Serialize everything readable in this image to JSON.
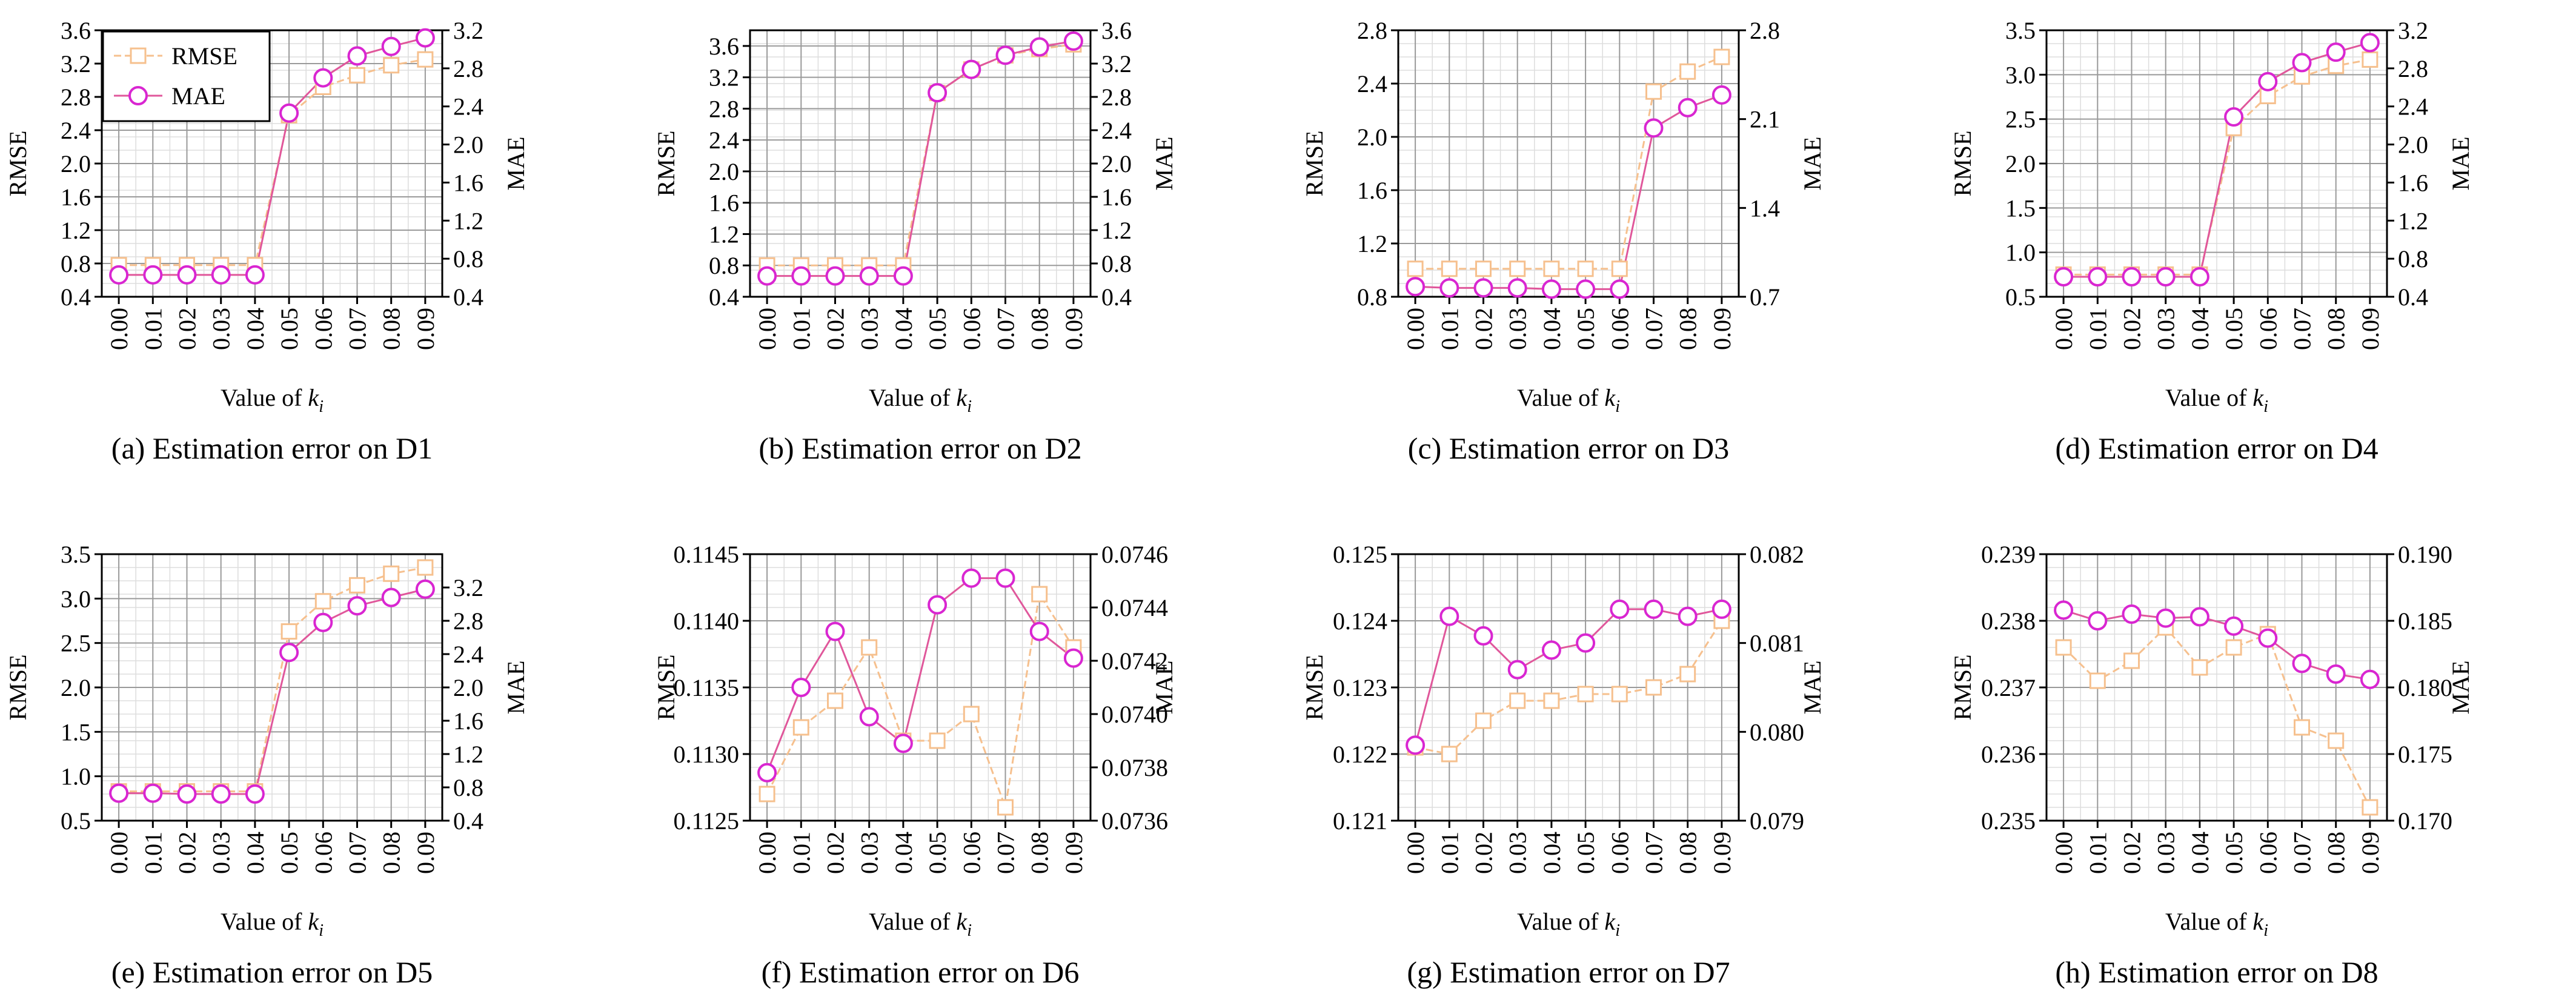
{
  "figure": {
    "x_ticks": [
      "0.00",
      "0.01",
      "0.02",
      "0.03",
      "0.04",
      "0.05",
      "0.06",
      "0.07",
      "0.08",
      "0.09"
    ],
    "xlabel_prefix": "Value of ",
    "xlabel_var": "k",
    "xlabel_sub": "i",
    "legend": {
      "rmse": "RMSE",
      "mae": "MAE"
    },
    "colors": {
      "rmse": "#f6c08e",
      "rmse_fill": "#ffffff",
      "mae_line": "#e0579b",
      "mae_marker": "#d926d1",
      "grid_major": "#9a9a9a",
      "grid_minor": "#dddddd"
    }
  },
  "chart_data": [
    {
      "type": "line",
      "caption": "(a) Estimation error on D1",
      "ylabel_left": "RMSE",
      "ylabel_right": "MAE",
      "ylim_left": [
        0.4,
        3.6
      ],
      "yticks_left": [
        "0.4",
        "0.8",
        "1.2",
        "1.6",
        "2.0",
        "2.4",
        "2.8",
        "3.2",
        "3.6"
      ],
      "ylim_right": [
        0.4,
        3.2
      ],
      "yticks_right": [
        "0.4",
        "0.8",
        "1.2",
        "1.6",
        "2.0",
        "2.4",
        "2.8",
        "3.2"
      ],
      "x": [
        0.0,
        0.01,
        0.02,
        0.03,
        0.04,
        0.05,
        0.06,
        0.07,
        0.08,
        0.09
      ],
      "series": [
        {
          "name": "RMSE",
          "axis": "left",
          "values": [
            0.78,
            0.78,
            0.78,
            0.78,
            0.78,
            2.58,
            2.92,
            3.06,
            3.18,
            3.25
          ]
        },
        {
          "name": "MAE",
          "axis": "right",
          "values": [
            0.63,
            0.63,
            0.63,
            0.63,
            0.63,
            2.33,
            2.7,
            2.93,
            3.03,
            3.12
          ]
        }
      ]
    },
    {
      "type": "line",
      "caption": "(b) Estimation error on D2",
      "ylabel_left": "RMSE",
      "ylabel_right": "MAE",
      "ylim_left": [
        0.4,
        3.8
      ],
      "yticks_left": [
        "0.4",
        "0.8",
        "1.2",
        "1.6",
        "2.0",
        "2.4",
        "2.8",
        "3.2",
        "3.6"
      ],
      "ylim_right": [
        0.4,
        3.6
      ],
      "yticks_right": [
        "0.4",
        "0.8",
        "1.2",
        "1.6",
        "2.0",
        "2.4",
        "2.8",
        "3.2",
        "3.6"
      ],
      "x": [
        0.0,
        0.01,
        0.02,
        0.03,
        0.04,
        0.05,
        0.06,
        0.07,
        0.08,
        0.09
      ],
      "series": [
        {
          "name": "RMSE",
          "axis": "left",
          "values": [
            0.8,
            0.8,
            0.8,
            0.8,
            0.8,
            3.0,
            3.3,
            3.48,
            3.56,
            3.62
          ]
        },
        {
          "name": "MAE",
          "axis": "right",
          "values": [
            0.65,
            0.65,
            0.65,
            0.65,
            0.65,
            2.85,
            3.13,
            3.3,
            3.4,
            3.47
          ]
        }
      ]
    },
    {
      "type": "line",
      "caption": "(c) Estimation error on D3",
      "ylabel_left": "RMSE",
      "ylabel_right": "MAE",
      "ylim_left": [
        0.8,
        2.8
      ],
      "yticks_left": [
        "0.8",
        "1.2",
        "1.6",
        "2.0",
        "2.4",
        "2.8"
      ],
      "ylim_right": [
        0.7,
        2.8
      ],
      "yticks_right": [
        "0.7",
        "1.4",
        "2.1",
        "2.8"
      ],
      "x": [
        0.0,
        0.01,
        0.02,
        0.03,
        0.04,
        0.05,
        0.06,
        0.07,
        0.08,
        0.09
      ],
      "series": [
        {
          "name": "RMSE",
          "axis": "left",
          "values": [
            1.01,
            1.01,
            1.01,
            1.01,
            1.01,
            1.01,
            1.01,
            2.34,
            2.49,
            2.6
          ]
        },
        {
          "name": "MAE",
          "axis": "right",
          "values": [
            0.78,
            0.77,
            0.77,
            0.77,
            0.76,
            0.76,
            0.76,
            2.03,
            2.19,
            2.29
          ]
        }
      ]
    },
    {
      "type": "line",
      "caption": "(d) Estimation error on D4",
      "ylabel_left": "RMSE",
      "ylabel_right": "MAE",
      "ylim_left": [
        0.5,
        3.5
      ],
      "yticks_left": [
        "0.5",
        "1.0",
        "1.5",
        "2.0",
        "2.5",
        "3.0",
        "3.5"
      ],
      "ylim_right": [
        0.4,
        3.2
      ],
      "yticks_right": [
        "0.4",
        "0.8",
        "1.2",
        "1.6",
        "2.0",
        "2.4",
        "2.8",
        "3.2"
      ],
      "x": [
        0.0,
        0.01,
        0.02,
        0.03,
        0.04,
        0.05,
        0.06,
        0.07,
        0.08,
        0.09
      ],
      "series": [
        {
          "name": "RMSE",
          "axis": "left",
          "values": [
            0.75,
            0.75,
            0.75,
            0.75,
            0.75,
            2.4,
            2.76,
            2.98,
            3.1,
            3.17
          ]
        },
        {
          "name": "MAE",
          "axis": "right",
          "values": [
            0.61,
            0.61,
            0.61,
            0.61,
            0.61,
            2.29,
            2.66,
            2.86,
            2.97,
            3.07
          ]
        }
      ]
    },
    {
      "type": "line",
      "caption": "(e) Estimation error on D5",
      "ylabel_left": "RMSE",
      "ylabel_right": "MAE",
      "ylim_left": [
        0.5,
        3.5
      ],
      "yticks_left": [
        "0.5",
        "1.0",
        "1.5",
        "2.0",
        "2.5",
        "3.0",
        "3.5"
      ],
      "ylim_right": [
        0.4,
        3.6
      ],
      "yticks_right": [
        "0.4",
        "0.8",
        "1.2",
        "1.6",
        "2.0",
        "2.4",
        "2.8",
        "3.2"
      ],
      "x": [
        0.0,
        0.01,
        0.02,
        0.03,
        0.04,
        0.05,
        0.06,
        0.07,
        0.08,
        0.09
      ],
      "series": [
        {
          "name": "RMSE",
          "axis": "left",
          "values": [
            0.83,
            0.83,
            0.83,
            0.83,
            0.83,
            2.63,
            2.97,
            3.15,
            3.28,
            3.35
          ]
        },
        {
          "name": "MAE",
          "axis": "right",
          "values": [
            0.73,
            0.73,
            0.72,
            0.72,
            0.72,
            2.42,
            2.78,
            2.98,
            3.08,
            3.18
          ]
        }
      ]
    },
    {
      "type": "line",
      "caption": "(f) Estimation error on D6",
      "ylabel_left": "RMSE",
      "ylabel_right": "MAE",
      "ylim_left": [
        0.1125,
        0.1145
      ],
      "yticks_left": [
        "0.1125",
        "0.1130",
        "0.1135",
        "0.1140",
        "0.1145"
      ],
      "ylim_right": [
        0.0736,
        0.0746
      ],
      "yticks_right": [
        "0.0736",
        "0.0738",
        "0.0740",
        "0.0742",
        "0.0744",
        "0.0746"
      ],
      "x": [
        0.0,
        0.01,
        0.02,
        0.03,
        0.04,
        0.05,
        0.06,
        0.07,
        0.08,
        0.09
      ],
      "series": [
        {
          "name": "RMSE",
          "axis": "left",
          "values": [
            0.1127,
            0.1132,
            0.1134,
            0.1138,
            0.1131,
            0.1131,
            0.1133,
            0.1126,
            0.1142,
            0.1138
          ]
        },
        {
          "name": "MAE",
          "axis": "right",
          "values": [
            0.07378,
            0.0741,
            0.07431,
            0.07399,
            0.07389,
            0.07441,
            0.07451,
            0.07451,
            0.07431,
            0.07421
          ]
        }
      ]
    },
    {
      "type": "line",
      "caption": "(g) Estimation error on D7",
      "ylabel_left": "RMSE",
      "ylabel_right": "MAE",
      "ylim_left": [
        0.121,
        0.125
      ],
      "yticks_left": [
        "0.121",
        "0.122",
        "0.123",
        "0.124",
        "0.125"
      ],
      "ylim_right": [
        0.079,
        0.082
      ],
      "yticks_right": [
        "0.079",
        "0.080",
        "0.081",
        "0.082"
      ],
      "x": [
        0.0,
        0.01,
        0.02,
        0.03,
        0.04,
        0.05,
        0.06,
        0.07,
        0.08,
        0.09
      ],
      "series": [
        {
          "name": "RMSE",
          "axis": "left",
          "values": [
            0.1221,
            0.122,
            0.1225,
            0.1228,
            0.1228,
            0.1229,
            0.1229,
            0.123,
            0.1232,
            0.124
          ]
        },
        {
          "name": "MAE",
          "axis": "right",
          "values": [
            0.07985,
            0.0813,
            0.08108,
            0.0807,
            0.08092,
            0.081,
            0.08138,
            0.08138,
            0.0813,
            0.08138
          ]
        }
      ]
    },
    {
      "type": "line",
      "caption": "(h) Estimation error on D8",
      "ylabel_left": "RMSE",
      "ylabel_right": "MAE",
      "ylim_left": [
        0.235,
        0.239
      ],
      "yticks_left": [
        "0.235",
        "0.236",
        "0.237",
        "0.238",
        "0.239"
      ],
      "ylim_right": [
        0.17,
        0.19
      ],
      "yticks_right": [
        "0.170",
        "0.175",
        "0.180",
        "0.185",
        "0.190"
      ],
      "x": [
        0.0,
        0.01,
        0.02,
        0.03,
        0.04,
        0.05,
        0.06,
        0.07,
        0.08,
        0.09
      ],
      "series": [
        {
          "name": "RMSE",
          "axis": "left",
          "values": [
            0.2376,
            0.2371,
            0.2374,
            0.2379,
            0.2373,
            0.2376,
            0.2378,
            0.2364,
            0.2362,
            0.2352
          ]
        },
        {
          "name": "MAE",
          "axis": "right",
          "values": [
            0.1858,
            0.185,
            0.1855,
            0.1852,
            0.1853,
            0.1846,
            0.1837,
            0.1818,
            0.181,
            0.1806
          ]
        }
      ]
    }
  ]
}
